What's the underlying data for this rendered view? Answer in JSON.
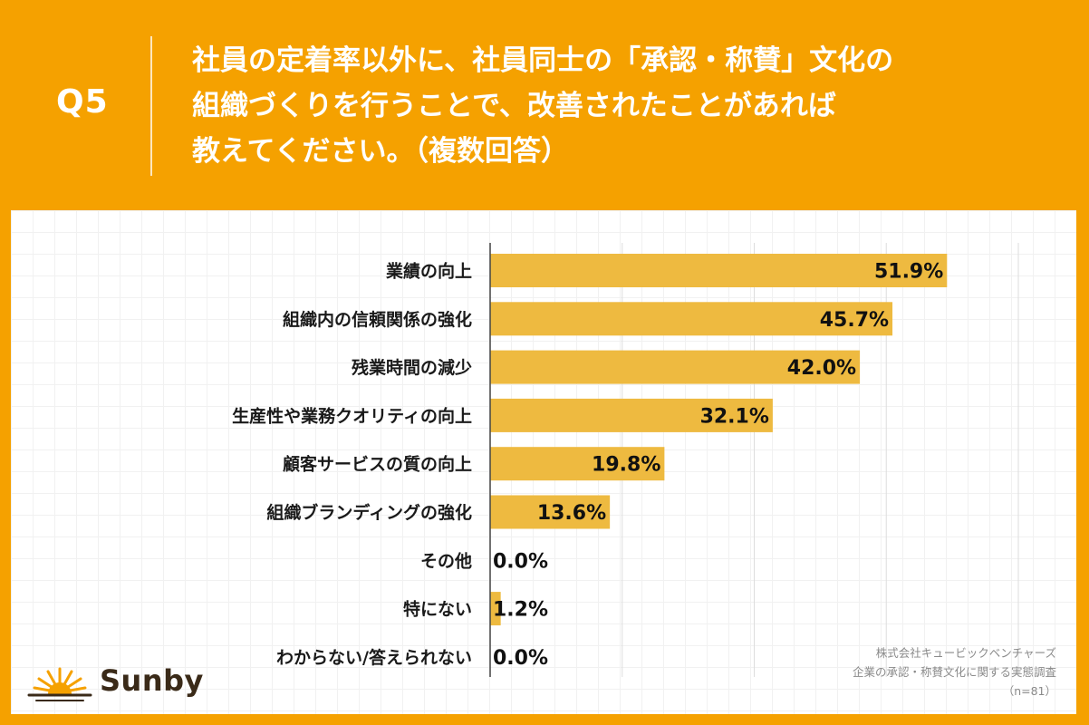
{
  "header": {
    "q_label": "Q5",
    "question_lines": [
      "社員の定着率以外に、社員同士の「承認・称賛」文化の",
      "組織づくりを行うことで、改善されたことがあれば",
      "教えてください。（複数回答）"
    ]
  },
  "colors": {
    "background": "#F5A100",
    "bar": "#EEBA40",
    "axis": "#444444",
    "gridline": "#dddddd"
  },
  "chart_data": {
    "type": "bar",
    "orientation": "horizontal",
    "categories": [
      "業績の向上",
      "組織内の信頼関係の強化",
      "残業時間の減少",
      "生産性や業務クオリティの向上",
      "顧客サービスの質の向上",
      "組織ブランディングの強化",
      "その他",
      "特にない",
      "わからない/答えられない"
    ],
    "values": [
      51.9,
      45.7,
      42.0,
      32.1,
      19.8,
      13.6,
      0.0,
      1.2,
      0.0
    ],
    "value_labels": [
      "51.9%",
      "45.7%",
      "42.0%",
      "32.1%",
      "19.8%",
      "13.6%",
      "0.0%",
      "1.2%",
      "0.0%"
    ],
    "xlim": [
      0,
      60
    ],
    "grid_step": 15,
    "unit": "%"
  },
  "source": {
    "company": "株式会社キュービックベンチャーズ",
    "survey": "企業の承認・称賛文化に関する実態調査",
    "sample": "（n=81）"
  },
  "logo": {
    "text": "Sunby",
    "icon": "sun-rising-icon"
  }
}
